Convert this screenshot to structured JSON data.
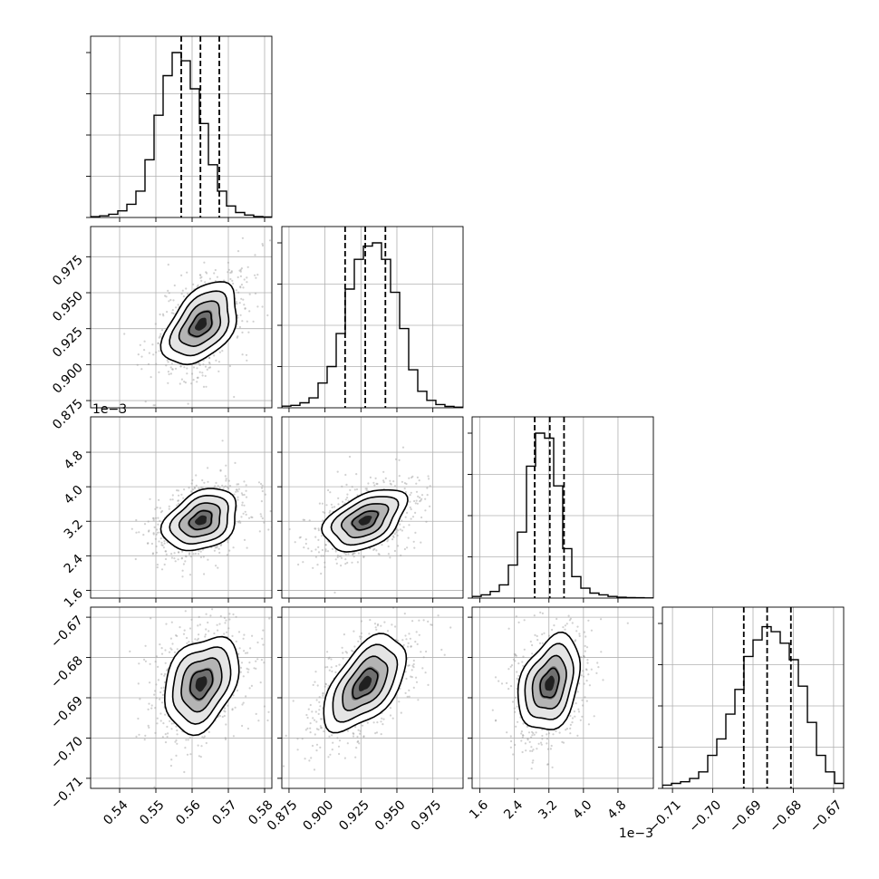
{
  "chart_data": {
    "type": "corner",
    "grid": true,
    "colors": {
      "line": "#000000",
      "scatter": "#9a9a9a",
      "grid": "#b0b0b0"
    },
    "params": [
      {
        "range": [
          0.532,
          0.582
        ],
        "ticks": [
          0.54,
          0.55,
          0.56,
          0.57,
          0.58
        ],
        "tick_labels": [
          "0.54",
          "0.55",
          "0.56",
          "0.57",
          "0.58"
        ],
        "offset_label": "",
        "mean": 0.5625,
        "std": 0.005,
        "quantiles": [
          0.557,
          0.5623,
          0.5675
        ]
      },
      {
        "range": [
          0.87,
          0.996
        ],
        "ticks": [
          0.875,
          0.9,
          0.925,
          0.95,
          0.975
        ],
        "tick_labels": [
          "0.875",
          "0.900",
          "0.925",
          "0.950",
          "0.975"
        ],
        "offset_label": "",
        "mean": 0.928,
        "std": 0.014,
        "quantiles": [
          0.914,
          0.928,
          0.942
        ]
      },
      {
        "range": [
          1.42,
          5.62
        ],
        "ticks": [
          1.6,
          2.4,
          3.2,
          4.0,
          4.8
        ],
        "tick_labels": [
          "1.6",
          "2.4",
          "3.2",
          "4.0",
          "4.8"
        ],
        "offset_label": "1e−3",
        "mean": 3.22,
        "std": 0.35,
        "quantiles": [
          2.87,
          3.22,
          3.55
        ]
      },
      {
        "range": [
          -0.7125,
          -0.6675
        ],
        "ticks": [
          -0.71,
          -0.7,
          -0.69,
          -0.68,
          -0.67
        ],
        "tick_labels": [
          "−0.71",
          "−0.70",
          "−0.69",
          "−0.68",
          "−0.67"
        ],
        "offset_label": "",
        "mean": -0.6865,
        "std": 0.0058,
        "quantiles": [
          -0.6923,
          -0.6865,
          -0.6806
        ]
      }
    ],
    "correlations": [
      [
        1.0,
        0.45,
        0.3,
        0.3
      ],
      [
        0.45,
        1.0,
        0.45,
        0.55
      ],
      [
        0.3,
        0.45,
        1.0,
        0.3
      ],
      [
        0.3,
        0.55,
        0.3,
        1.0
      ]
    ],
    "histograms": [
      [
        0.005,
        0.01,
        0.02,
        0.04,
        0.08,
        0.16,
        0.35,
        0.62,
        0.86,
        1.0,
        0.95,
        0.78,
        0.57,
        0.32,
        0.16,
        0.07,
        0.03,
        0.015,
        0.006,
        0.003
      ],
      [
        0.01,
        0.015,
        0.03,
        0.06,
        0.15,
        0.25,
        0.45,
        0.72,
        0.9,
        0.98,
        1.0,
        0.9,
        0.7,
        0.48,
        0.23,
        0.1,
        0.045,
        0.02,
        0.008,
        0.004
      ],
      [
        0.01,
        0.02,
        0.04,
        0.08,
        0.2,
        0.4,
        0.8,
        1.0,
        0.97,
        0.68,
        0.3,
        0.13,
        0.06,
        0.03,
        0.02,
        0.01,
        0.005,
        0.003,
        0.002,
        0.001
      ],
      [
        0.02,
        0.03,
        0.04,
        0.06,
        0.1,
        0.2,
        0.3,
        0.45,
        0.6,
        0.8,
        0.9,
        0.98,
        0.95,
        0.88,
        0.78,
        0.62,
        0.4,
        0.2,
        0.1,
        0.03
      ]
    ]
  }
}
